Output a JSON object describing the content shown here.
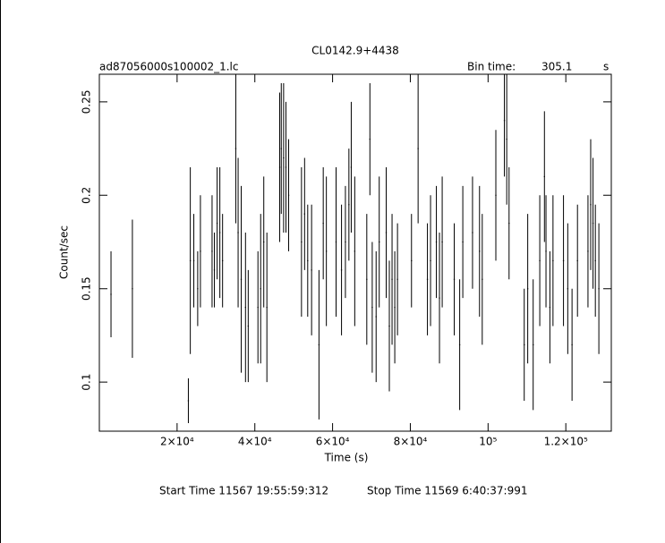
{
  "chart_data": {
    "type": "errorbar",
    "title": "CL0142.9+4438",
    "subtitle": "ad87056000s100002_1.lc",
    "bin_time_label": "Bin time:",
    "bin_time_value": "305.1",
    "bin_time_unit": "s",
    "x_label": "Time (s)",
    "y_label": "Count/sec",
    "start_time_label": "Start Time 11567  19:55:59:312",
    "stop_time_label": "Stop Time 11569  6:40:37:991",
    "xlim": [
      0,
      131700
    ],
    "ylim": [
      0.0737,
      0.2648
    ],
    "xticks": [
      {
        "value": 20000,
        "label": "2×10⁴"
      },
      {
        "value": 40000,
        "label": "4×10⁴"
      },
      {
        "value": 60000,
        "label": "6×10⁴"
      },
      {
        "value": 80000,
        "label": "8×10⁴"
      },
      {
        "value": 100000,
        "label": "10⁵"
      },
      {
        "value": 120000,
        "label": "1.2×10⁵"
      }
    ],
    "yticks": [
      0.1,
      0.15,
      0.2,
      0.25
    ],
    "series": [
      {
        "color": "#000000",
        "x": [
          3000,
          8500,
          22900,
          23400,
          24300,
          25300,
          26000,
          29000,
          29600,
          30300,
          31000,
          31700,
          35100,
          35700,
          36500,
          37600,
          38300,
          40800,
          41500,
          42300,
          43100,
          46400,
          46800,
          47400,
          48000,
          48700,
          52000,
          52800,
          53600,
          54600,
          56500,
          57600,
          58400,
          60900,
          62300,
          63300,
          64200,
          64800,
          65700,
          68800,
          69600,
          70200,
          71200,
          72000,
          73800,
          74600,
          75300,
          76000,
          76700,
          80300,
          82000,
          84400,
          85200,
          86700,
          87500,
          88200,
          91300,
          92700,
          93500,
          96000,
          97800,
          98500,
          102000,
          104200,
          104800,
          105400,
          109300,
          110200,
          111600,
          113300,
          114500,
          114900,
          115900,
          116700,
          119400,
          120500,
          121600,
          123000,
          125700,
          126400,
          127000,
          127600,
          128500
        ],
        "values": [
          0.147,
          0.15,
          0.09,
          0.165,
          0.165,
          0.15,
          0.17,
          0.17,
          0.16,
          0.185,
          0.18,
          0.165,
          0.225,
          0.18,
          0.155,
          0.14,
          0.13,
          0.14,
          0.15,
          0.175,
          0.14,
          0.215,
          0.225,
          0.22,
          0.215,
          0.2,
          0.175,
          0.19,
          0.165,
          0.16,
          0.12,
          0.185,
          0.17,
          0.175,
          0.16,
          0.175,
          0.195,
          0.215,
          0.17,
          0.155,
          0.23,
          0.14,
          0.135,
          0.175,
          0.18,
          0.13,
          0.155,
          0.14,
          0.155,
          0.165,
          0.225,
          0.155,
          0.165,
          0.175,
          0.145,
          0.175,
          0.155,
          0.12,
          0.175,
          0.18,
          0.17,
          0.155,
          0.2,
          0.24,
          0.23,
          0.185,
          0.12,
          0.15,
          0.12,
          0.165,
          0.21,
          0.17,
          0.14,
          0.165,
          0.165,
          0.15,
          0.12,
          0.165,
          0.17,
          0.195,
          0.185,
          0.165,
          0.15
        ],
        "errors": [
          0.023,
          0.037,
          0.012,
          0.05,
          0.025,
          0.02,
          0.03,
          0.03,
          0.02,
          0.03,
          0.035,
          0.025,
          0.04,
          0.04,
          0.05,
          0.04,
          0.03,
          0.03,
          0.04,
          0.035,
          0.04,
          0.04,
          0.035,
          0.04,
          0.035,
          0.03,
          0.04,
          0.03,
          0.03,
          0.035,
          0.04,
          0.03,
          0.04,
          0.04,
          0.035,
          0.03,
          0.03,
          0.035,
          0.04,
          0.035,
          0.03,
          0.035,
          0.035,
          0.035,
          0.035,
          0.035,
          0.035,
          0.03,
          0.03,
          0.025,
          0.04,
          0.03,
          0.035,
          0.03,
          0.035,
          0.035,
          0.03,
          0.035,
          0.03,
          0.03,
          0.035,
          0.035,
          0.035,
          0.03,
          0.035,
          0.03,
          0.03,
          0.04,
          0.035,
          0.035,
          0.035,
          0.03,
          0.03,
          0.035,
          0.035,
          0.035,
          0.03,
          0.03,
          0.03,
          0.035,
          0.035,
          0.03,
          0.035
        ]
      }
    ]
  }
}
